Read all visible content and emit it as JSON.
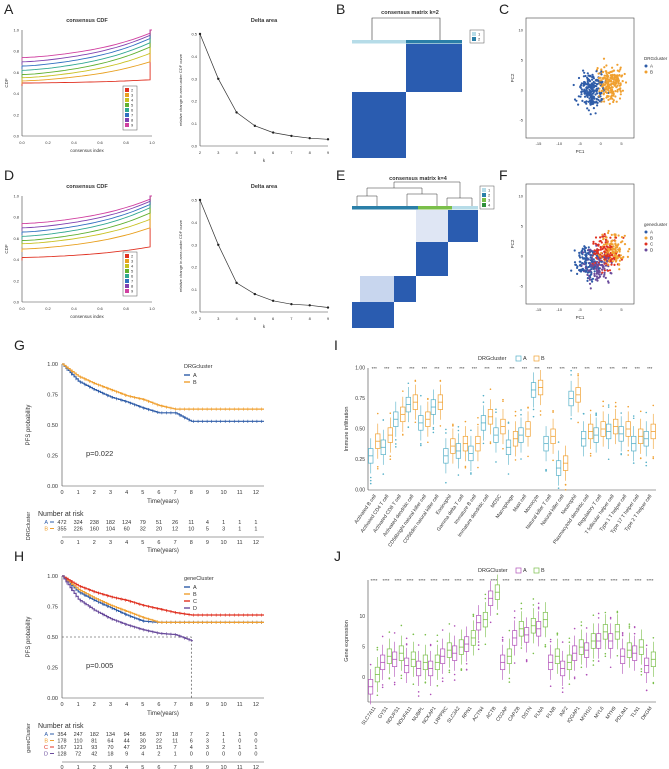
{
  "panels": {
    "A": {
      "letter": "A"
    },
    "B": {
      "letter": "B"
    },
    "C": {
      "letter": "C"
    },
    "D": {
      "letter": "D"
    },
    "E": {
      "letter": "E"
    },
    "F": {
      "letter": "F"
    },
    "G": {
      "letter": "G"
    },
    "H": {
      "letter": "H"
    },
    "I": {
      "letter": "I"
    },
    "J": {
      "letter": "J"
    }
  },
  "colors": {
    "blue": "#2e5ca8",
    "orange": "#f0a030",
    "red": "#e03020",
    "purple": "#6a4c9c",
    "heat_blue": "#2a5cb0",
    "heat_light": "#e8eef8",
    "cyan": "#55b0c8",
    "green": "#7abf4a",
    "magenta": "#b050b8"
  },
  "chart_data": [
    {
      "id": "A_cdf",
      "type": "line",
      "title": "consensus CDF",
      "xlabel": "consensus index",
      "ylabel": "CDF",
      "x_ticks": [
        "0.0",
        "0.2",
        "0.4",
        "0.6",
        "0.8",
        "1.0"
      ],
      "y_ticks": [
        "0.0",
        "0.2",
        "0.4",
        "0.6",
        "0.8",
        "1.0"
      ],
      "legend": [
        "2",
        "3",
        "4",
        "5",
        "6",
        "7",
        "8",
        "9"
      ],
      "series": [
        {
          "name": "2",
          "start": 0.5,
          "end": 0.53
        },
        {
          "name": "3",
          "start": 0.52,
          "end": 0.7
        },
        {
          "name": "4",
          "start": 0.55,
          "end": 0.78
        },
        {
          "name": "5",
          "start": 0.58,
          "end": 0.84
        },
        {
          "name": "6",
          "start": 0.62,
          "end": 0.88
        },
        {
          "name": "7",
          "start": 0.66,
          "end": 0.92
        },
        {
          "name": "8",
          "start": 0.7,
          "end": 0.95
        },
        {
          "name": "9",
          "start": 0.74,
          "end": 0.97
        }
      ]
    },
    {
      "id": "A_delta",
      "type": "line",
      "title": "Delta area",
      "xlabel": "k",
      "ylabel": "relative change in area under CDF curve",
      "x": [
        2,
        3,
        4,
        5,
        6,
        7,
        8,
        9
      ],
      "y": [
        0.5,
        0.3,
        0.15,
        0.09,
        0.06,
        0.045,
        0.035,
        0.03
      ],
      "y_ticks": [
        "0.0",
        "0.1",
        "0.2",
        "0.3",
        "0.4",
        "0.5"
      ],
      "ylim": [
        0,
        0.5
      ]
    },
    {
      "id": "B_matrix",
      "type": "heatmap",
      "title": "consensus matrix k=2",
      "legend": [
        "1",
        "2"
      ]
    },
    {
      "id": "C_pca",
      "type": "scatter",
      "xlabel": "PC1",
      "ylabel": "PC2",
      "legend_title": "DRGcluster",
      "legend": [
        "A",
        "B"
      ],
      "x_ticks": [
        "-15",
        "-10",
        "-5",
        "0",
        "5"
      ],
      "y_ticks": [
        "-5",
        "0",
        "5",
        "10"
      ]
    },
    {
      "id": "D_cdf",
      "type": "line",
      "title": "consensus CDF",
      "xlabel": "consensus index",
      "ylabel": "CDF",
      "x_ticks": [
        "0.0",
        "0.2",
        "0.4",
        "0.6",
        "0.8",
        "1.0"
      ],
      "y_ticks": [
        "0.0",
        "0.2",
        "0.4",
        "0.6",
        "0.8",
        "1.0"
      ],
      "legend": [
        "2",
        "3",
        "4",
        "5",
        "6",
        "7",
        "8",
        "9"
      ],
      "series": [
        {
          "name": "2",
          "start": 0.42,
          "end": 0.52
        },
        {
          "name": "3",
          "start": 0.5,
          "end": 0.7
        },
        {
          "name": "4",
          "start": 0.55,
          "end": 0.78
        },
        {
          "name": "5",
          "start": 0.58,
          "end": 0.84
        },
        {
          "name": "6",
          "start": 0.62,
          "end": 0.89
        },
        {
          "name": "7",
          "start": 0.66,
          "end": 0.92
        },
        {
          "name": "8",
          "start": 0.7,
          "end": 0.95
        },
        {
          "name": "9",
          "start": 0.74,
          "end": 0.97
        }
      ]
    },
    {
      "id": "D_delta",
      "type": "line",
      "title": "Delta area",
      "xlabel": "k",
      "ylabel": "relative change in area under CDF curve",
      "x": [
        2,
        3,
        4,
        5,
        6,
        7,
        8,
        9
      ],
      "y": [
        0.5,
        0.3,
        0.13,
        0.08,
        0.05,
        0.035,
        0.03,
        0.02
      ],
      "y_ticks": [
        "0.0",
        "0.1",
        "0.2",
        "0.3",
        "0.4",
        "0.5"
      ],
      "ylim": [
        0,
        0.5
      ]
    },
    {
      "id": "E_matrix",
      "type": "heatmap",
      "title": "consensus matrix k=4",
      "legend": [
        "1",
        "2",
        "3",
        "4"
      ]
    },
    {
      "id": "F_pca",
      "type": "scatter",
      "xlabel": "PC1",
      "ylabel": "PC2",
      "legend_title": "genecluster",
      "legend": [
        "A",
        "B",
        "C",
        "D"
      ],
      "x_ticks": [
        "-15",
        "-10",
        "-5",
        "0",
        "5"
      ],
      "y_ticks": [
        "-5",
        "0",
        "5",
        "10"
      ]
    },
    {
      "id": "G_km",
      "type": "line",
      "xlabel": "Time(years)",
      "ylabel": "PFS probability",
      "legend_title": "DRGcluster",
      "legend": [
        "A",
        "B"
      ],
      "pvalue": "p=0.022",
      "x_ticks": [
        "0",
        "1",
        "2",
        "3",
        "4",
        "5",
        "6",
        "7",
        "8",
        "9",
        "10",
        "11",
        "12"
      ],
      "y_ticks": [
        "0.00",
        "0.25",
        "0.50",
        "0.75",
        "1.00"
      ],
      "series": [
        {
          "name": "A",
          "x": [
            0,
            1,
            2,
            3,
            4,
            5,
            6,
            7,
            8,
            12.5
          ],
          "y": [
            1.0,
            0.86,
            0.79,
            0.73,
            0.69,
            0.64,
            0.6,
            0.6,
            0.53,
            0.53
          ]
        },
        {
          "name": "B",
          "x": [
            0,
            1,
            2,
            3,
            4,
            5,
            6,
            7,
            8,
            12.5
          ],
          "y": [
            1.0,
            0.9,
            0.84,
            0.79,
            0.74,
            0.71,
            0.66,
            0.63,
            0.63,
            0.63
          ]
        }
      ],
      "risk_title": "Number at risk",
      "risk_ylabel": "DRGcluster",
      "risk_rows": [
        {
          "name": "A",
          "values": [
            "472",
            "324",
            "238",
            "182",
            "124",
            "79",
            "51",
            "26",
            "11",
            "4",
            "1",
            "1",
            "1"
          ]
        },
        {
          "name": "B",
          "values": [
            "355",
            "226",
            "160",
            "104",
            "60",
            "32",
            "20",
            "12",
            "10",
            "5",
            "3",
            "1",
            "1"
          ]
        }
      ]
    },
    {
      "id": "H_km",
      "type": "line",
      "xlabel": "Time(years)",
      "ylabel": "PFS probability",
      "legend_title": "geneCluster",
      "legend": [
        "A",
        "B",
        "C",
        "D"
      ],
      "pvalue": "p=0.005",
      "x_ticks": [
        "0",
        "1",
        "2",
        "3",
        "4",
        "5",
        "6",
        "7",
        "8",
        "9",
        "10",
        "11",
        "12"
      ],
      "y_ticks": [
        "0.00",
        "0.25",
        "0.50",
        "0.75",
        "1.00"
      ],
      "series": [
        {
          "name": "A",
          "x": [
            0,
            1,
            2,
            3,
            4,
            5,
            6,
            7,
            8,
            12.5
          ],
          "y": [
            1.0,
            0.87,
            0.8,
            0.74,
            0.68,
            0.63,
            0.62,
            0.62,
            0.62,
            0.62
          ]
        },
        {
          "name": "B",
          "x": [
            0,
            1,
            2,
            3,
            4,
            5,
            6,
            7,
            8,
            12.5
          ],
          "y": [
            1.0,
            0.89,
            0.82,
            0.76,
            0.71,
            0.66,
            0.62,
            0.62,
            0.62,
            0.62
          ]
        },
        {
          "name": "C",
          "x": [
            0,
            1,
            2,
            3,
            4,
            5,
            6,
            7,
            8,
            12.5
          ],
          "y": [
            1.0,
            0.92,
            0.87,
            0.83,
            0.8,
            0.76,
            0.73,
            0.7,
            0.68,
            0.68
          ]
        },
        {
          "name": "D",
          "x": [
            0,
            1,
            2,
            3,
            4,
            5,
            6,
            7,
            8,
            8.1
          ],
          "y": [
            1.0,
            0.81,
            0.72,
            0.65,
            0.6,
            0.56,
            0.53,
            0.52,
            0.47,
            0.47
          ]
        }
      ],
      "dashed": {
        "x": 8,
        "y": 0.5
      },
      "risk_title": "Number at risk",
      "risk_ylabel": "geneCluster",
      "risk_rows": [
        {
          "name": "A",
          "values": [
            "354",
            "247",
            "182",
            "134",
            "94",
            "56",
            "37",
            "18",
            "7",
            "2",
            "1",
            "1",
            "0"
          ]
        },
        {
          "name": "B",
          "values": [
            "178",
            "110",
            "81",
            "64",
            "44",
            "30",
            "22",
            "11",
            "6",
            "3",
            "1",
            "0",
            "0"
          ]
        },
        {
          "name": "C",
          "values": [
            "167",
            "121",
            "93",
            "70",
            "47",
            "29",
            "15",
            "7",
            "4",
            "3",
            "2",
            "1",
            "1"
          ]
        },
        {
          "name": "D",
          "values": [
            "128",
            "72",
            "42",
            "18",
            "9",
            "4",
            "2",
            "1",
            "0",
            "0",
            "0",
            "0",
            "0"
          ]
        }
      ]
    },
    {
      "id": "I_box",
      "type": "bar",
      "ylabel": "Immune infiltration",
      "legend_title": "DRGcluster",
      "legend": [
        "A",
        "B"
      ],
      "y_ticks": [
        "0.00",
        "0.25",
        "0.50",
        "0.75",
        "1.00"
      ],
      "ylim": [
        0,
        1
      ],
      "categories": [
        "Activated B cell",
        "Activated CD4 T cell",
        "Activated CD8 T cell",
        "Activated dendritic cell",
        "CD56bright natural killer cell",
        "CD56dim natural killer cell",
        "Eosinophil",
        "Gamma delta T cell",
        "Immature B cell",
        "Immature dendritic cell",
        "MDSC",
        "Macrophage",
        "Mast cell",
        "Monocyte",
        "Natural killer T cell",
        "Natural killer cell",
        "Neutrophil",
        "Plasmacytoid dendritic cell",
        "Regulatory T cell",
        "T follicular helper cell",
        "Type 1 T helper cell",
        "Type 17 T helper cell",
        "Type 2 T helper cell"
      ],
      "significance": [
        "***",
        "***",
        "***",
        "***",
        "***",
        "***",
        "***",
        "***",
        "***",
        "***",
        "***",
        "***",
        "***",
        "***",
        "***",
        "***",
        "***",
        "***",
        "***",
        "***",
        "***",
        "***",
        "***"
      ],
      "series": [
        {
          "name": "A",
          "values": [
            0.28,
            0.35,
            0.58,
            0.7,
            0.55,
            0.68,
            0.28,
            0.32,
            0.3,
            0.55,
            0.45,
            0.35,
            0.45,
            0.82,
            0.38,
            0.18,
            0.75,
            0.42,
            0.45,
            0.48,
            0.46,
            0.38,
            0.42
          ]
        },
        {
          "name": "B",
          "values": [
            0.4,
            0.45,
            0.62,
            0.72,
            0.58,
            0.72,
            0.36,
            0.38,
            0.38,
            0.6,
            0.52,
            0.42,
            0.5,
            0.84,
            0.44,
            0.22,
            0.78,
            0.48,
            0.5,
            0.52,
            0.5,
            0.44,
            0.48
          ]
        }
      ]
    },
    {
      "id": "J_box",
      "type": "bar",
      "ylabel": "Gene expression",
      "legend_title": "DRGCluster",
      "legend": [
        "A",
        "B"
      ],
      "y_ticks": [
        "0",
        "5",
        "10"
      ],
      "ylim": [
        -4,
        16
      ],
      "categories": [
        "SLC7A11",
        "GYS1",
        "NDUFS1",
        "NDUFA11",
        "NUBPL",
        "NCKAP1",
        "LRPPRC",
        "SLC3A2",
        "RPN1",
        "ACTN4",
        "ACTB",
        "CD2AP",
        "CAPZB",
        "DSTN",
        "FLNA",
        "FLNB",
        "INF2",
        "IQGAP1",
        "MYH10",
        "MYL6",
        "MYH9",
        "PDLIM1",
        "TLN1",
        "DKGM"
      ],
      "significance": [
        "****",
        "****",
        "****",
        "****",
        "****",
        "****",
        "****",
        "****",
        "****",
        "***",
        "****",
        "****",
        "****",
        "****",
        "****",
        "****",
        "****",
        "****",
        "****",
        "****",
        "****",
        "****",
        "****",
        "****"
      ],
      "series": [
        {
          "name": "A",
          "values": [
            -1.5,
            2.5,
            3.0,
            2.0,
            1.5,
            1.5,
            3.5,
            4.0,
            5.5,
            9.0,
            13.0,
            2.5,
            6.5,
            7.0,
            8.0,
            2.5,
            1.5,
            4.0,
            4.5,
            6.0,
            6.0,
            3.5,
            4.0,
            2.0
          ]
        },
        {
          "name": "B",
          "values": [
            0.5,
            3.5,
            4.0,
            3.0,
            2.5,
            2.5,
            4.5,
            5.0,
            6.5,
            9.5,
            14.0,
            3.5,
            8.0,
            8.5,
            9.5,
            3.5,
            2.5,
            5.0,
            6.0,
            7.5,
            7.5,
            4.5,
            5.0,
            3.0
          ]
        }
      ]
    }
  ]
}
